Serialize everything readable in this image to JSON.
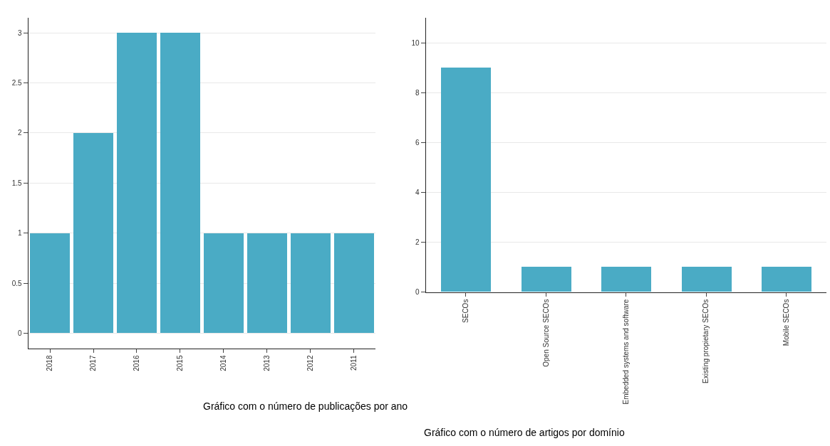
{
  "chart_data": [
    {
      "type": "bar",
      "categories": [
        "2018",
        "2017",
        "2016",
        "2015",
        "2014",
        "2013",
        "2012",
        "2011"
      ],
      "values": [
        1,
        2,
        3,
        3,
        1,
        1,
        1,
        1
      ],
      "color": "#4aabc5",
      "ylim": [
        -0.15,
        3.15
      ],
      "yticks": [
        0,
        0.5,
        1,
        1.5,
        2,
        2.5,
        3
      ],
      "grid": "y",
      "annotations": [
        "Gráfico com o número de publicações por ano"
      ]
    },
    {
      "type": "bar",
      "categories": [
        "SECOs",
        "Open Source SECOs",
        "Embedded systems and software",
        "Existing propietary SECOs",
        "Mobile SECOs"
      ],
      "values": [
        9,
        1,
        1,
        1,
        1
      ],
      "color": "#4aabc5",
      "ylim": [
        0,
        11
      ],
      "yticks": [
        0,
        2,
        4,
        6,
        8,
        10
      ],
      "grid": "y",
      "annotations": [
        "Gráfico com o número de artigos por domínio"
      ]
    }
  ]
}
